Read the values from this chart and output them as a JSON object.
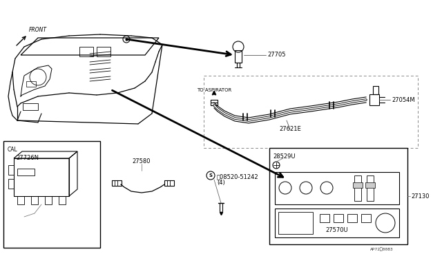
{
  "bg_color": "#ffffff",
  "line_color": "#000000",
  "fig_width": 6.4,
  "fig_height": 3.72,
  "dpi": 100,
  "labels": {
    "front": "FRONT",
    "cal": "CAL",
    "to_aspirator": "TO ASPIRATOR",
    "part_27705": "27705",
    "part_27054M": "27054M",
    "part_27621E": "27621E",
    "part_27726N": "27726N",
    "part_27580": "27580",
    "part_08520_line1": "倅08520-51242",
    "part_08520_line2": "(4)",
    "part_28529U": "28529U",
    "part_27130": "27130",
    "part_27570U": "27570U",
    "watermark": "AP72：0083"
  },
  "font_size_label": 6.0,
  "font_size_small": 5.5,
  "font_size_tiny": 4.5
}
